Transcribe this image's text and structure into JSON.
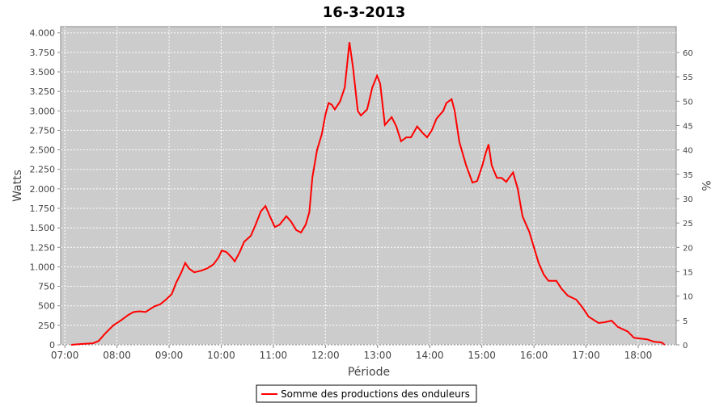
{
  "chart_data": {
    "type": "line",
    "title": "16-3-2013",
    "x_label": "Période",
    "y_label": "Watts",
    "y2_label": "%",
    "x": [
      7.12,
      7.31,
      7.54,
      7.65,
      7.78,
      7.93,
      8.09,
      8.21,
      8.32,
      8.43,
      8.55,
      8.71,
      8.83,
      8.94,
      9.05,
      9.14,
      9.23,
      9.31,
      9.38,
      9.48,
      9.61,
      9.73,
      9.85,
      9.95,
      10.01,
      10.1,
      10.2,
      10.26,
      10.35,
      10.44,
      10.57,
      10.66,
      10.76,
      10.85,
      10.94,
      11.03,
      11.12,
      11.25,
      11.34,
      11.44,
      11.53,
      11.62,
      11.69,
      11.75,
      11.84,
      11.93,
      12.0,
      12.06,
      12.12,
      12.18,
      12.28,
      12.37,
      12.46,
      12.53,
      12.62,
      12.68,
      12.8,
      12.9,
      12.99,
      13.05,
      13.14,
      13.27,
      13.36,
      13.45,
      13.55,
      13.64,
      13.76,
      13.86,
      13.95,
      14.04,
      14.13,
      14.26,
      14.32,
      14.42,
      14.48,
      14.57,
      14.7,
      14.82,
      14.91,
      15.01,
      15.07,
      15.13,
      15.19,
      15.29,
      15.38,
      15.47,
      15.53,
      15.6,
      15.69,
      15.78,
      15.91,
      16.0,
      16.09,
      16.19,
      16.28,
      16.43,
      16.53,
      16.65,
      16.81,
      16.93,
      17.05,
      17.24,
      17.36,
      17.49,
      17.61,
      17.8,
      17.92,
      18.17,
      18.3,
      18.45,
      18.51
    ],
    "series": [
      {
        "name": "Somme des productions des onduleurs",
        "color": "#ff0000",
        "values": [
          0,
          10,
          20,
          50,
          150,
          250,
          320,
          380,
          420,
          430,
          420,
          490,
          520,
          580,
          650,
          800,
          920,
          1050,
          980,
          930,
          950,
          980,
          1030,
          1120,
          1210,
          1190,
          1120,
          1070,
          1180,
          1320,
          1400,
          1540,
          1710,
          1780,
          1640,
          1510,
          1540,
          1650,
          1580,
          1470,
          1440,
          1540,
          1700,
          2150,
          2500,
          2700,
          2950,
          3100,
          3080,
          3020,
          3120,
          3300,
          3880,
          3550,
          3000,
          2940,
          3020,
          3300,
          3450,
          3350,
          2820,
          2920,
          2800,
          2610,
          2660,
          2660,
          2800,
          2720,
          2660,
          2750,
          2900,
          3000,
          3100,
          3150,
          3000,
          2600,
          2300,
          2080,
          2100,
          2300,
          2450,
          2570,
          2300,
          2140,
          2140,
          2090,
          2150,
          2210,
          2000,
          1650,
          1450,
          1250,
          1050,
          900,
          820,
          820,
          720,
          630,
          580,
          480,
          360,
          280,
          290,
          310,
          230,
          170,
          90,
          70,
          40,
          30,
          0
        ]
      }
    ],
    "xlim": [
      6.92,
      18.73
    ],
    "xticks": [
      {
        "value": 7,
        "label": "07:00"
      },
      {
        "value": 8,
        "label": "08:00"
      },
      {
        "value": 9,
        "label": "09:00"
      },
      {
        "value": 10,
        "label": "10:00"
      },
      {
        "value": 11,
        "label": "11:00"
      },
      {
        "value": 12,
        "label": "12:00"
      },
      {
        "value": 13,
        "label": "13:00"
      },
      {
        "value": 14,
        "label": "14:00"
      },
      {
        "value": 15,
        "label": "15:00"
      },
      {
        "value": 16,
        "label": "16:00"
      },
      {
        "value": 17,
        "label": "17:00"
      },
      {
        "value": 18,
        "label": "18:00"
      }
    ],
    "ylim": [
      0,
      4080
    ],
    "yticks": [
      0,
      250,
      500,
      750,
      {
        "value": 1000,
        "label": "1.000"
      },
      {
        "value": 1250,
        "label": "1.250"
      },
      {
        "value": 1500,
        "label": "1.500"
      },
      {
        "value": 1750,
        "label": "1.750"
      },
      {
        "value": 2000,
        "label": "2.000"
      },
      {
        "value": 2250,
        "label": "2.250"
      },
      {
        "value": 2500,
        "label": "2.500"
      },
      {
        "value": 2750,
        "label": "2.750"
      },
      {
        "value": 3000,
        "label": "3.000"
      },
      {
        "value": 3250,
        "label": "3.250"
      },
      {
        "value": 3500,
        "label": "3.500"
      },
      {
        "value": 3750,
        "label": "3.750"
      },
      {
        "value": 4000,
        "label": "4.000"
      }
    ],
    "y2lim": [
      0,
      65.3
    ],
    "y2ticks": [
      0,
      5,
      10,
      15,
      20,
      25,
      30,
      35,
      40,
      45,
      50,
      55,
      60
    ],
    "grid": true,
    "legend": "bottom"
  }
}
